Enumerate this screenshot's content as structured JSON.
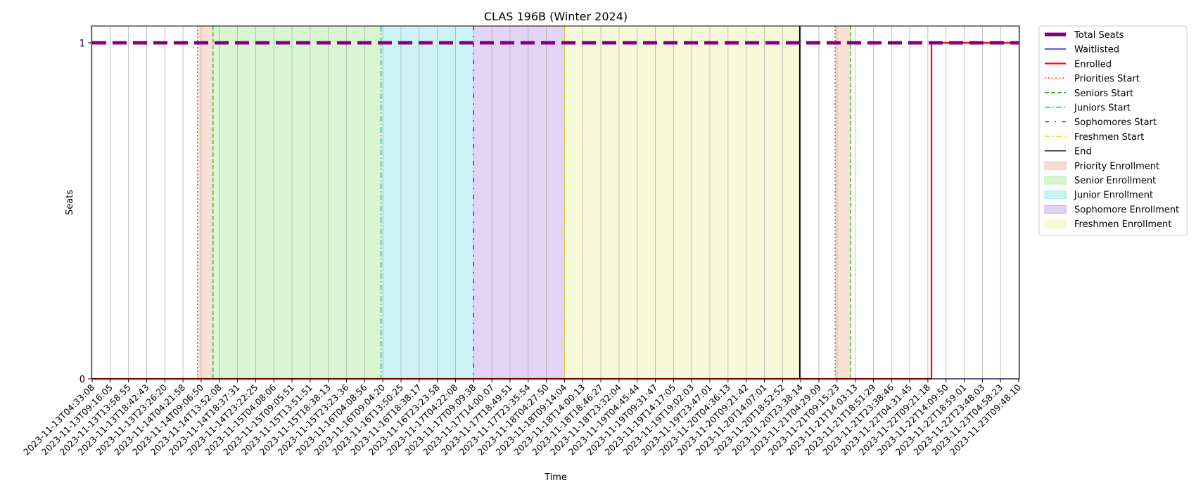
{
  "chart_data": {
    "type": "line",
    "title": "CLAS 196B (Winter 2024)",
    "xlabel": "Time",
    "ylabel": "Seats",
    "ylim": [
      0,
      1.05
    ],
    "yticks": [
      0,
      1
    ],
    "grid": "vertical",
    "legend_position": "outside-right",
    "x_ticks": [
      "2023-11-13T04:33:08",
      "2023-11-13T09:16:05",
      "2023-11-13T13:58:55",
      "2023-11-13T18:42:43",
      "2023-11-13T23:26:20",
      "2023-11-14T04:21:58",
      "2023-11-14T09:06:50",
      "2023-11-14T13:52:08",
      "2023-11-14T18:37:31",
      "2023-11-14T23:22:25",
      "2023-11-15T04:08:06",
      "2023-11-15T09:05:51",
      "2023-11-15T13:51:51",
      "2023-11-15T18:38:13",
      "2023-11-15T23:23:36",
      "2023-11-16T04:08:56",
      "2023-11-16T09:04:20",
      "2023-11-16T13:50:25",
      "2023-11-16T18:38:17",
      "2023-11-16T23:23:58",
      "2023-11-17T04:22:08",
      "2023-11-17T09:09:38",
      "2023-11-17T14:00:07",
      "2023-11-17T18:49:51",
      "2023-11-17T23:35:54",
      "2023-11-18T04:27:50",
      "2023-11-18T09:14:04",
      "2023-11-18T14:00:13",
      "2023-11-18T18:46:27",
      "2023-11-18T23:32:04",
      "2023-11-19T04:45:44",
      "2023-11-19T09:31:47",
      "2023-11-19T14:17:05",
      "2023-11-19T19:02:03",
      "2023-11-19T23:47:01",
      "2023-11-20T04:36:13",
      "2023-11-20T09:21:42",
      "2023-11-20T14:07:01",
      "2023-11-20T18:52:52",
      "2023-11-20T23:38:14",
      "2023-11-21T04:29:09",
      "2023-11-21T09:15:23",
      "2023-11-21T14:03:13",
      "2023-11-21T18:51:29",
      "2023-11-21T23:38:46",
      "2023-11-22T04:31:45",
      "2023-11-22T09:21:18",
      "2023-11-22T14:09:50",
      "2023-11-22T18:59:01",
      "2023-11-22T23:48:03",
      "2023-11-23T04:58:23",
      "2023-11-23T09:48:10"
    ],
    "series": [
      {
        "name": "Total Seats",
        "color": "#800080",
        "style": "dashed-thick",
        "values": [
          [
            0,
            1
          ],
          [
            51,
            1
          ]
        ]
      },
      {
        "name": "Waitlisted",
        "color": "#0000ff",
        "style": "solid",
        "values": [
          [
            0,
            0
          ],
          [
            51,
            0
          ]
        ]
      },
      {
        "name": "Enrolled",
        "color": "#ff0000",
        "style": "solid",
        "values": [
          [
            0,
            0
          ],
          [
            46.2,
            0
          ],
          [
            46.2,
            1
          ],
          [
            51,
            1
          ]
        ]
      }
    ],
    "markers": [
      {
        "name": "Priorities Start",
        "color": "#ff4500",
        "style": "dotted",
        "x": [
          5.8,
          40.9
        ]
      },
      {
        "name": "Seniors Start",
        "color": "#22bb22",
        "style": "dashed",
        "x": [
          6.65,
          41.75
        ]
      },
      {
        "name": "Juniors Start",
        "color": "#00bfbf",
        "style": "dashdot",
        "x": [
          15.9
        ]
      },
      {
        "name": "Sophomores Start",
        "color": "#6a0dad",
        "style": "loose-dashdot",
        "x": [
          21.0
        ]
      },
      {
        "name": "Freshmen Start",
        "color": "#e6d200",
        "style": "dashdot",
        "x": [
          26.0
        ]
      },
      {
        "name": "End",
        "color": "#000000",
        "style": "solid",
        "x": [
          38.95
        ]
      }
    ],
    "periods": [
      {
        "name": "Priority Enrollment",
        "color": "#f5c6b0",
        "ranges": [
          [
            5.8,
            6.65
          ],
          [
            40.9,
            41.75
          ]
        ]
      },
      {
        "name": "Senior Enrollment",
        "color": "#b9ecab",
        "ranges": [
          [
            6.65,
            15.9
          ]
        ]
      },
      {
        "name": "Junior Enrollment",
        "color": "#a6e7ec",
        "ranges": [
          [
            15.9,
            21.0
          ]
        ]
      },
      {
        "name": "Sophomore Enrollment",
        "color": "#c9b1ec",
        "ranges": [
          [
            21.0,
            26.0
          ]
        ]
      },
      {
        "name": "Freshmen Enrollment",
        "color": "#f2f4b8",
        "ranges": [
          [
            26.0,
            38.95
          ]
        ]
      }
    ]
  }
}
